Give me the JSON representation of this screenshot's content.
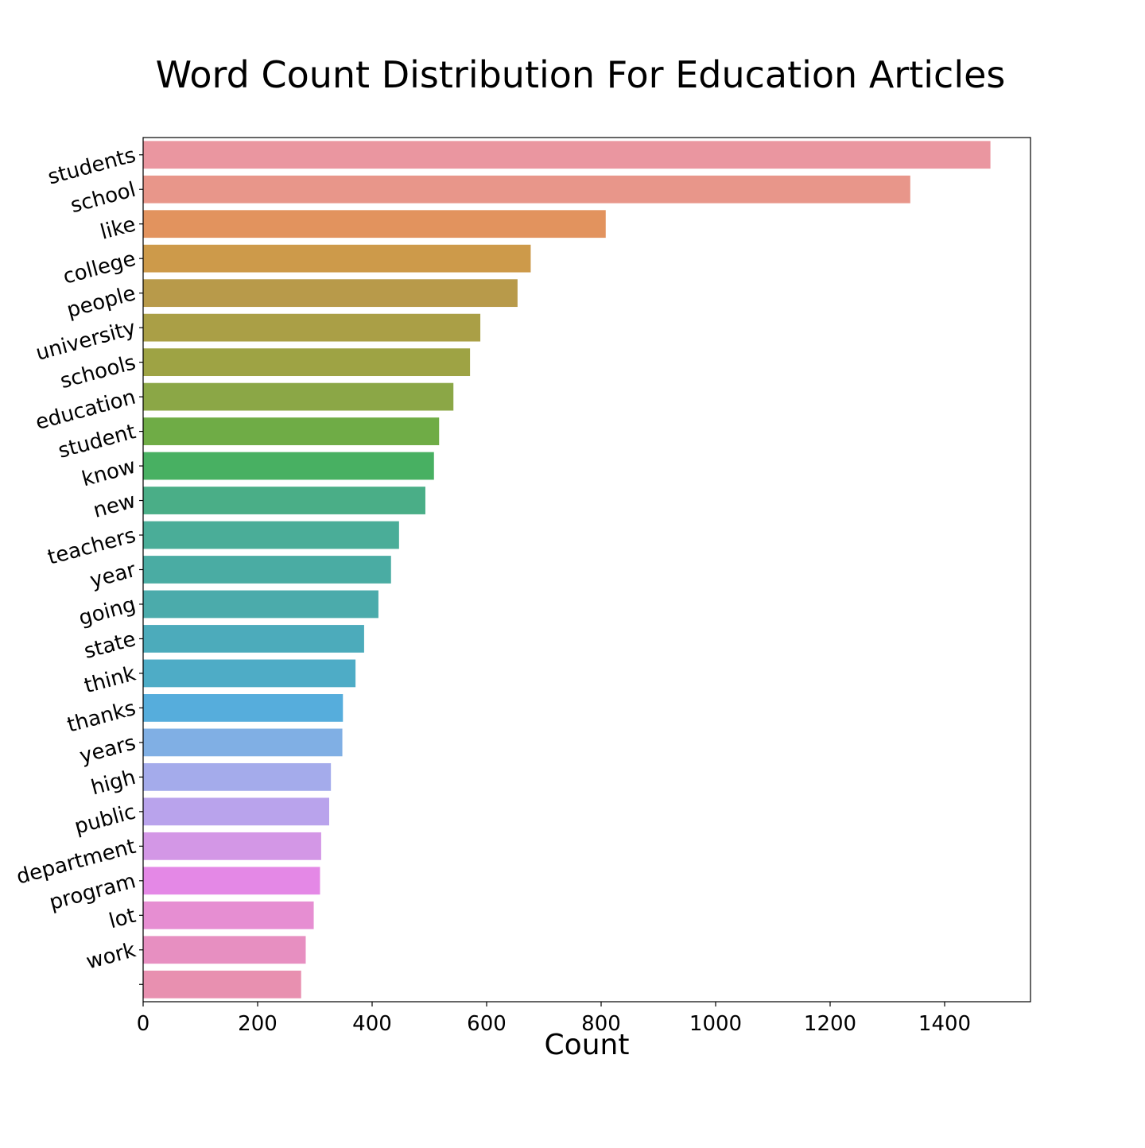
{
  "chart_data": {
    "type": "bar",
    "orientation": "horizontal",
    "title": "Word Count Distribution For Education Articles",
    "xlabel": "Count",
    "ylabel": "",
    "xlim": [
      0,
      1550
    ],
    "xticks": [
      0,
      200,
      400,
      600,
      800,
      1000,
      1200,
      1400
    ],
    "grid": false,
    "legend": false,
    "categories": [
      "students",
      "school",
      "like",
      "college",
      "people",
      "university",
      "schools",
      "education",
      "student",
      "know",
      "new",
      "teachers",
      "year",
      "going",
      "state",
      "think",
      "thanks",
      "years",
      "high",
      "public",
      "department",
      "program",
      "lot",
      "work",
      ""
    ],
    "values": [
      1480,
      1340,
      808,
      677,
      654,
      589,
      571,
      542,
      517,
      508,
      493,
      447,
      433,
      411,
      386,
      371,
      349,
      348,
      328,
      325,
      311,
      309,
      298,
      284,
      276
    ],
    "colors": [
      "#ea96a0",
      "#e8968a",
      "#e2935e",
      "#cd9a4a",
      "#b89a4a",
      "#aa9f46",
      "#9ea344",
      "#8ba746",
      "#6fac46",
      "#48b062",
      "#4aae87",
      "#4aad98",
      "#4aaca3",
      "#4babab",
      "#4cabbb",
      "#4eacc6",
      "#56addc",
      "#80afe4",
      "#a4abeb",
      "#b9a3ec",
      "#d397e6",
      "#e488e6",
      "#e68ed2",
      "#e78fc1",
      "#e890b0"
    ]
  }
}
